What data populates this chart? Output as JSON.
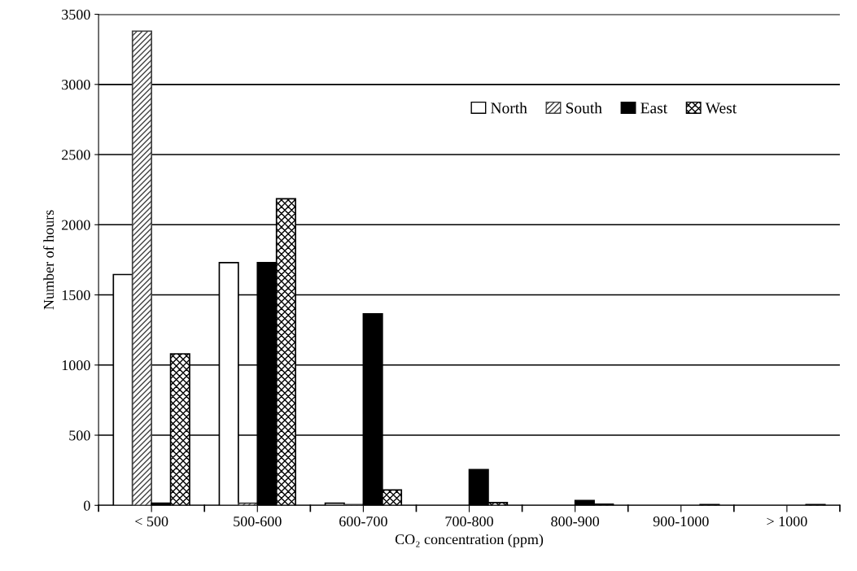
{
  "chart_data": {
    "type": "bar",
    "xlabel": "CO₂ concentration (ppm)",
    "ylabel": "Number of hours",
    "categories": [
      "< 500",
      "500-600",
      "600-700",
      "700-800",
      "800-900",
      "900-1000",
      "> 1000"
    ],
    "series": [
      {
        "name": "North",
        "color": "#ffffff",
        "values": [
          1645,
          1730,
          15,
          0,
          0,
          0,
          0
        ]
      },
      {
        "name": "South",
        "color": "#404040",
        "values": [
          3380,
          15,
          5,
          0,
          0,
          0,
          0
        ]
      },
      {
        "name": "East",
        "color": "#000000",
        "values": [
          15,
          1730,
          1365,
          255,
          35,
          0,
          0
        ]
      },
      {
        "name": "West",
        "color": "#000000",
        "values": [
          1080,
          2185,
          110,
          20,
          8,
          5,
          5
        ]
      }
    ],
    "ylim": [
      0,
      3500
    ],
    "yticks": [
      0,
      500,
      1000,
      1500,
      2000,
      2500,
      3000,
      3500
    ],
    "grid": "y",
    "legend": "top right"
  }
}
